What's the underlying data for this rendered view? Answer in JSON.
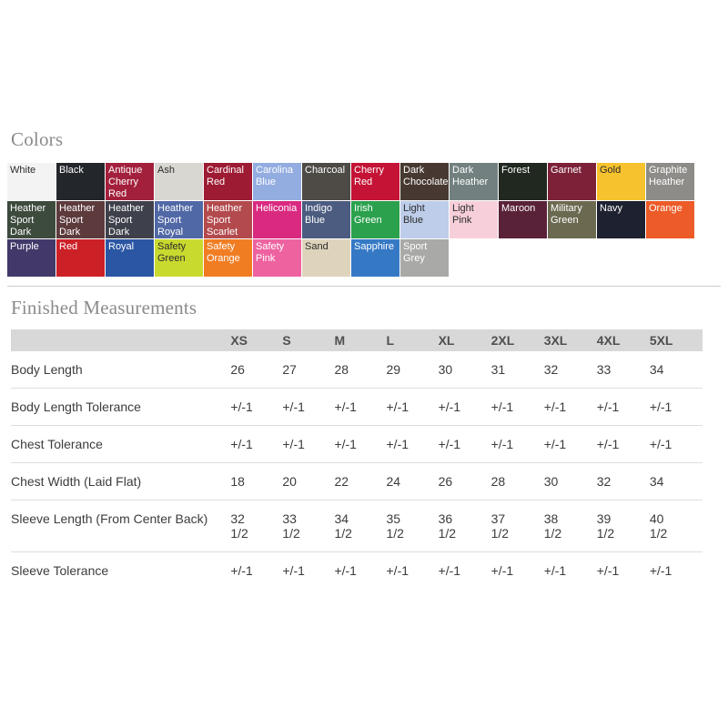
{
  "headings": {
    "colors": "Colors",
    "measurements": "Finished Measurements"
  },
  "colors": {
    "rows": [
      [
        {
          "name": "White",
          "bg": "#f3f3f3",
          "dark_text": true
        },
        {
          "name": "Black",
          "bg": "#23262b",
          "dark_text": false
        },
        {
          "name": "Antique Cherry Red",
          "bg": "#a3203c",
          "dark_text": false
        },
        {
          "name": "Ash",
          "bg": "#d8d7d2",
          "dark_text": true
        },
        {
          "name": "Cardinal Red",
          "bg": "#9d1b33",
          "dark_text": false
        },
        {
          "name": "Carolina Blue",
          "bg": "#93ade0",
          "dark_text": false
        },
        {
          "name": "Charcoal",
          "bg": "#4e4b47",
          "dark_text": false
        },
        {
          "name": "Cherry Red",
          "bg": "#c41334",
          "dark_text": false
        },
        {
          "name": "Dark Chocolate",
          "bg": "#473931",
          "dark_text": false
        },
        {
          "name": "Dark Heather",
          "bg": "#738080",
          "dark_text": false
        },
        {
          "name": "Forest",
          "bg": "#20281f",
          "dark_text": false
        },
        {
          "name": "Garnet",
          "bg": "#7d2139",
          "dark_text": false
        },
        {
          "name": "Gold",
          "bg": "#f6c22d",
          "dark_text": true
        },
        {
          "name": "Graphite Heather",
          "bg": "#8e8c88",
          "dark_text": false
        }
      ],
      [
        {
          "name": "Heather Sport Dark Green",
          "bg": "#3d4b3d",
          "dark_text": false
        },
        {
          "name": "Heather Sport Dark Maroon",
          "bg": "#5d3a3c",
          "dark_text": false
        },
        {
          "name": "Heather Sport Dark Navy",
          "bg": "#3e404b",
          "dark_text": false
        },
        {
          "name": "Heather Sport Royal",
          "bg": "#5168a6",
          "dark_text": false
        },
        {
          "name": "Heather Sport Scarlet",
          "bg": "#b34a4d",
          "dark_text": false
        },
        {
          "name": "Heliconia",
          "bg": "#da2a80",
          "dark_text": false
        },
        {
          "name": "Indigo Blue",
          "bg": "#4c5c80",
          "dark_text": false
        },
        {
          "name": "Irish Green",
          "bg": "#2ba14d",
          "dark_text": false
        },
        {
          "name": "Light Blue",
          "bg": "#bdcdea",
          "dark_text": true
        },
        {
          "name": "Light Pink",
          "bg": "#f6cfda",
          "dark_text": true
        },
        {
          "name": "Maroon",
          "bg": "#5a2238",
          "dark_text": false
        },
        {
          "name": "Military Green",
          "bg": "#6b6950",
          "dark_text": false
        },
        {
          "name": "Navy",
          "bg": "#1e2230",
          "dark_text": false
        },
        {
          "name": "Orange",
          "bg": "#ec5b28",
          "dark_text": false
        }
      ],
      [
        {
          "name": "Purple",
          "bg": "#42396a",
          "dark_text": false
        },
        {
          "name": "Red",
          "bg": "#cc2027",
          "dark_text": false
        },
        {
          "name": "Royal",
          "bg": "#2b56a4",
          "dark_text": false
        },
        {
          "name": "Safety Green",
          "bg": "#c9da2f",
          "dark_text": true
        },
        {
          "name": "Safety Orange",
          "bg": "#f17d23",
          "dark_text": false
        },
        {
          "name": "Safety Pink",
          "bg": "#ee62a0",
          "dark_text": false
        },
        {
          "name": "Sand",
          "bg": "#ded4bc",
          "dark_text": true
        },
        {
          "name": "Sapphire",
          "bg": "#3579c5",
          "dark_text": false
        },
        {
          "name": "Sport Grey",
          "bg": "#a9a9a7",
          "dark_text": false
        }
      ]
    ]
  },
  "measurements": {
    "sizes": [
      "XS",
      "S",
      "M",
      "L",
      "XL",
      "2XL",
      "3XL",
      "4XL",
      "5XL"
    ],
    "rows": [
      {
        "label": "Body Length",
        "values": [
          "26",
          "27",
          "28",
          "29",
          "30",
          "31",
          "32",
          "33",
          "34"
        ]
      },
      {
        "label": "Body Length Tolerance",
        "values": [
          "+/-1",
          "+/-1",
          "+/-1",
          "+/-1",
          "+/-1",
          "+/-1",
          "+/-1",
          "+/-1",
          "+/-1"
        ]
      },
      {
        "label": "Chest Tolerance",
        "values": [
          "+/-1",
          "+/-1",
          "+/-1",
          "+/-1",
          "+/-1",
          "+/-1",
          "+/-1",
          "+/-1",
          "+/-1"
        ]
      },
      {
        "label": "Chest Width (Laid Flat)",
        "values": [
          "18",
          "20",
          "22",
          "24",
          "26",
          "28",
          "30",
          "32",
          "34"
        ]
      },
      {
        "label": "Sleeve Length (From Center Back)",
        "values": [
          "32\n1/2",
          "33\n1/2",
          "34\n1/2",
          "35\n1/2",
          "36\n1/2",
          "37\n1/2",
          "38\n1/2",
          "39\n1/2",
          "40\n1/2"
        ]
      },
      {
        "label": "Sleeve Tolerance",
        "values": [
          "+/-1",
          "+/-1",
          "+/-1",
          "+/-1",
          "+/-1",
          "+/-1",
          "+/-1",
          "+/-1",
          "+/-1"
        ]
      }
    ]
  }
}
